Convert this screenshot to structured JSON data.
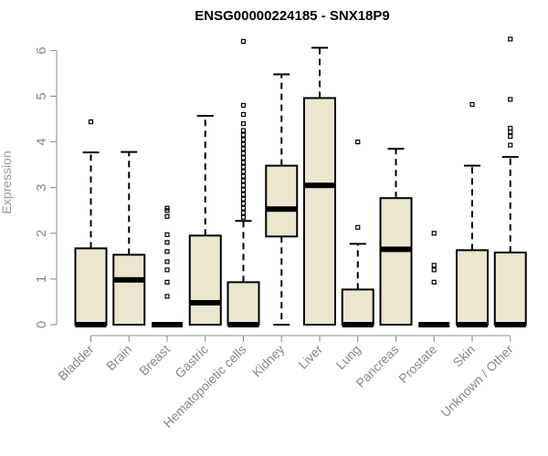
{
  "chart_data": {
    "type": "boxplot",
    "title": "ENSG00000224185 - SNX18P9",
    "xlabel": "",
    "ylabel": "Expression",
    "ylim": [
      0,
      6.3
    ],
    "yticks": [
      0,
      1,
      2,
      3,
      4,
      5,
      6
    ],
    "grid": false,
    "legend": "none",
    "colors": {
      "box_fill": "#ede6cf",
      "stroke": "#000000",
      "axis_text": "#888888"
    },
    "categories": [
      "Bladder",
      "Brain",
      "Breast",
      "Gastric",
      "Hematopoietic cells",
      "Kidney",
      "Liver",
      "Lung",
      "Pancreas",
      "Prostate",
      "Skin",
      "Unknown / Other"
    ],
    "boxes": [
      {
        "category": "Bladder",
        "whisker_low": 0,
        "q1": 0,
        "median": 0,
        "q3": 1.67,
        "whisker_high": 3.77,
        "outliers": [
          4.44
        ]
      },
      {
        "category": "Brain",
        "whisker_low": 0,
        "q1": 0,
        "median": 0.98,
        "q3": 1.53,
        "whisker_high": 3.78,
        "outliers": []
      },
      {
        "category": "Breast",
        "whisker_low": 0,
        "q1": 0,
        "median": 0,
        "q3": 0,
        "whisker_high": 0,
        "outliers": [
          0.62,
          0.93,
          1.2,
          1.38,
          1.6,
          1.8,
          1.97,
          2.37,
          2.5,
          2.55
        ]
      },
      {
        "category": "Gastric",
        "whisker_low": 0,
        "q1": 0,
        "median": 0.48,
        "q3": 1.95,
        "whisker_high": 4.57,
        "outliers": []
      },
      {
        "category": "Hematopoietic cells",
        "whisker_low": 0,
        "q1": 0,
        "median": 0,
        "q3": 0.93,
        "whisker_high": 2.27,
        "outliers": [
          2.35,
          2.45,
          2.55,
          2.65,
          2.75,
          2.85,
          2.95,
          3.05,
          3.15,
          3.25,
          3.35,
          3.45,
          3.55,
          3.65,
          3.75,
          3.85,
          3.95,
          4.05,
          4.15,
          4.25,
          4.4,
          4.6,
          4.8,
          6.2
        ]
      },
      {
        "category": "Kidney",
        "whisker_low": 0,
        "q1": 1.93,
        "median": 2.53,
        "q3": 3.48,
        "whisker_high": 5.48,
        "outliers": []
      },
      {
        "category": "Liver",
        "whisker_low": 0,
        "q1": 0,
        "median": 3.05,
        "q3": 4.96,
        "whisker_high": 6.06,
        "outliers": []
      },
      {
        "category": "Lung",
        "whisker_low": 0,
        "q1": 0,
        "median": 0,
        "q3": 0.77,
        "whisker_high": 1.77,
        "outliers": [
          2.13,
          4.0
        ]
      },
      {
        "category": "Pancreas",
        "whisker_low": 0,
        "q1": 0,
        "median": 1.65,
        "q3": 2.77,
        "whisker_high": 3.85,
        "outliers": []
      },
      {
        "category": "Prostate",
        "whisker_low": 0,
        "q1": 0,
        "median": 0,
        "q3": 0,
        "whisker_high": 0,
        "outliers": [
          0.93,
          1.2,
          1.3,
          2.0
        ]
      },
      {
        "category": "Skin",
        "whisker_low": 0,
        "q1": 0,
        "median": 0,
        "q3": 1.63,
        "whisker_high": 3.48,
        "outliers": [
          4.82
        ]
      },
      {
        "category": "Unknown / Other",
        "whisker_low": 0,
        "q1": 0,
        "median": 0,
        "q3": 1.58,
        "whisker_high": 3.67,
        "outliers": [
          3.93,
          4.12,
          4.22,
          4.3,
          4.93,
          6.25
        ]
      }
    ]
  }
}
